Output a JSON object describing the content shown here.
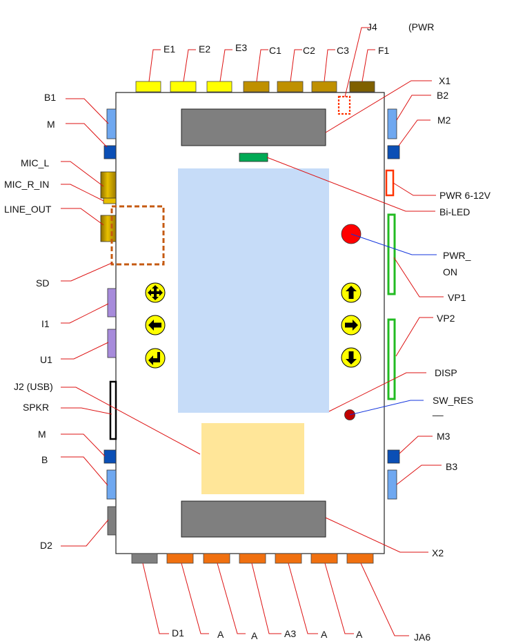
{
  "labels": {
    "e1": "E1",
    "e2": "E2",
    "e3": "E3",
    "c1": "C1",
    "c2": "C2",
    "c3": "C3",
    "j4": "J4",
    "pwr_top": "(PWR",
    "f1": "F1",
    "x1": "X1",
    "b1": "B1",
    "m_left_top": "M",
    "mic_l": "MIC_L",
    "mic_r_in": "MIC_R_IN",
    "line_out": "LINE_OUT",
    "sd": "SD",
    "i1": "I1",
    "u1": "U1",
    "j2_usb": "J2 (USB)",
    "spkr": "SPKR",
    "m_left_bottom": "M",
    "b_left_bottom": "B",
    "d2": "D2",
    "b2": "B2",
    "m2": "M2",
    "pwr_6_12v": "PWR 6-12V",
    "bi_led": "Bi-LED",
    "pwr_on_1": "PWR_",
    "pwr_on_2": "ON",
    "vp1": "VP1",
    "vp2": "VP2",
    "disp": "DISP",
    "sw_res_1": "SW_RES",
    "sw_res_2": "__",
    "m3": "M3",
    "b3": "B3",
    "x2": "X2",
    "d1": "D1",
    "a1": "A",
    "a2": "A",
    "a3": "A3",
    "a4": "A",
    "a5": "A",
    "ja6": "JA6"
  },
  "colors": {
    "e_header": "#ffff00",
    "c_header": "#bf9000",
    "f_header": "#7f6000",
    "a_header": "#f07010",
    "d1_header": "#7f7f7f",
    "blue_button": "#6fa8f0",
    "dark_blue_pad": "#0b4fb5",
    "audio_jack": "#c9a200",
    "sd_outline": "#c55a11",
    "purple_pad": "#a78bdb",
    "green_outline": "#22bb22",
    "red_outline": "#ff3300",
    "red_led": "#ff0000",
    "dark_red_button": "#c00000",
    "display_area": "#c6dcf8",
    "speaker_area": "#ffe699",
    "connector_gray": "#7f7f7f",
    "bi_led_green": "#00aa55",
    "key_yellow": "#ffff00",
    "leader_red": "#dd1111",
    "leader_blue": "#1133dd"
  },
  "icons": [
    "four-way-arrow-icon",
    "left-arrow-icon",
    "return-arrow-icon",
    "up-arrow-icon",
    "right-arrow-icon",
    "down-arrow-icon"
  ]
}
